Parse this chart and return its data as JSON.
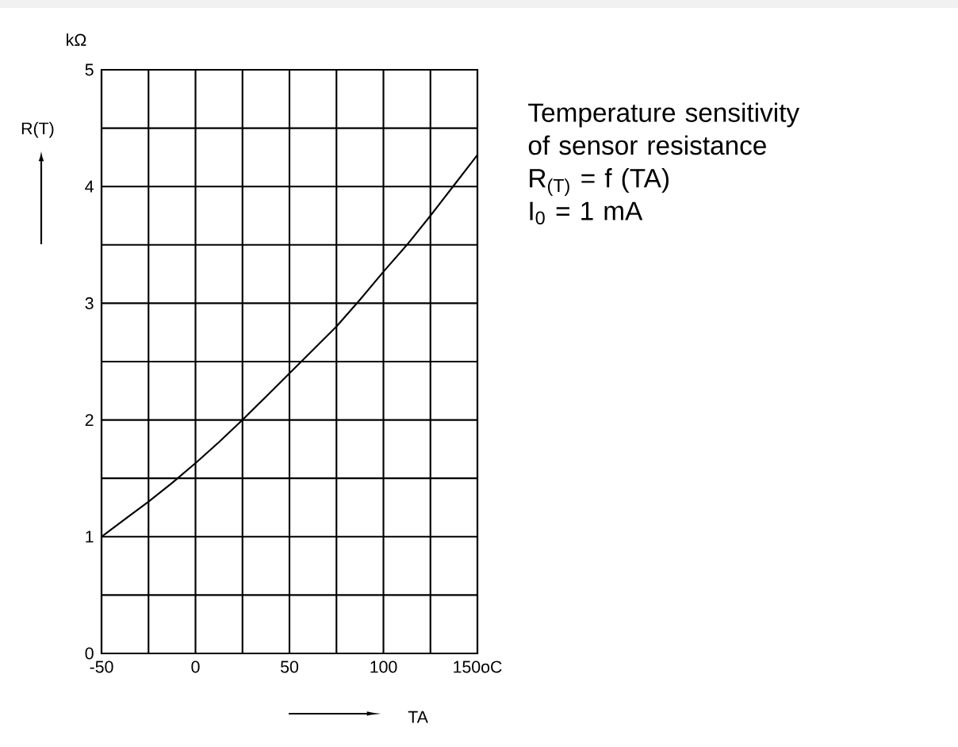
{
  "chart_data": {
    "type": "line",
    "title": "Temperature sensitivity of sensor resistance",
    "xlabel": "TA",
    "ylabel": "R(T)",
    "annotations": [
      "kΩ",
      "R$_{(T)}$ = f (TA)",
      "I$_{0}$ = 1 mA"
    ],
    "x": [
      -50,
      -37.5,
      -25,
      -12.5,
      0,
      12.5,
      25,
      37.5,
      50,
      62.5,
      75,
      87.5,
      100,
      112.5,
      125,
      137.5,
      150
    ],
    "series": [
      {
        "color": "#000000",
        "values": [
          1.0,
          1.15,
          1.3,
          1.46,
          1.63,
          1.81,
          2.0,
          2.2,
          2.4,
          2.6,
          2.8,
          3.03,
          3.27,
          3.5,
          3.75,
          4.01,
          4.27
        ]
      }
    ],
    "xlim": [
      -50,
      150
    ],
    "ylim": [
      0,
      5
    ],
    "xticks": [
      -50,
      {
        "value": -25,
        "label": null
      },
      0,
      {
        "value": 25,
        "label": null
      },
      50,
      {
        "value": 75,
        "label": null
      },
      100,
      {
        "value": 125,
        "label": null
      },
      {
        "value": 150,
        "label": "150oC"
      }
    ],
    "yticks": [
      0,
      {
        "value": 0.5,
        "label": null
      },
      1,
      {
        "value": 1.5,
        "label": null
      },
      2,
      {
        "value": 2.5,
        "label": null
      },
      3,
      {
        "value": 3.5,
        "label": null
      },
      4,
      {
        "value": 4.5,
        "label": null
      },
      5
    ],
    "grid": true,
    "marker": "none",
    "line_style": "solid"
  }
}
